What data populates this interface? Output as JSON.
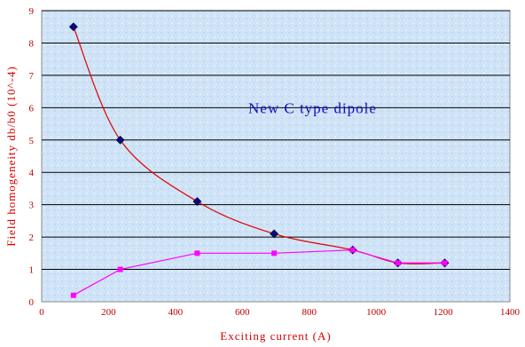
{
  "chart_data": {
    "type": "line",
    "title": "",
    "xlabel": "Exciting current (A)",
    "ylabel": "Field homogeneity db/b0 (10^-4)",
    "xlim": [
      0,
      1400
    ],
    "ylim": [
      0,
      9
    ],
    "xticks": [
      0,
      200,
      400,
      600,
      800,
      1000,
      1200,
      1400
    ],
    "yticks": [
      0,
      1,
      2,
      3,
      4,
      5,
      6,
      7,
      8,
      9
    ],
    "grid": "horizontal",
    "legend": "none",
    "annotations": [
      {
        "text": "New C type dipole",
        "x": 810,
        "y": 6.0
      }
    ],
    "series": [
      {
        "marker": "diamond",
        "line_color": "#e00000",
        "marker_color": "#0a0a7a",
        "smooth": true,
        "x": [
          95,
          235,
          465,
          695,
          930,
          1065,
          1205
        ],
        "y": [
          8.5,
          5.0,
          3.1,
          2.1,
          1.6,
          1.2,
          1.2
        ]
      },
      {
        "marker": "square",
        "line_color": "#ff00ff",
        "marker_color": "#ff00ff",
        "smooth": false,
        "x": [
          95,
          235,
          465,
          695,
          930,
          1065,
          1205
        ],
        "y": [
          0.2,
          1.0,
          1.5,
          1.5,
          1.6,
          1.2,
          1.2
        ]
      }
    ]
  },
  "colors": {
    "plot_background": "#cfe3f7",
    "grid": "#000000",
    "axis_text": "#c00000",
    "axis_title": "#d60000",
    "annotation": "#1010c0"
  }
}
